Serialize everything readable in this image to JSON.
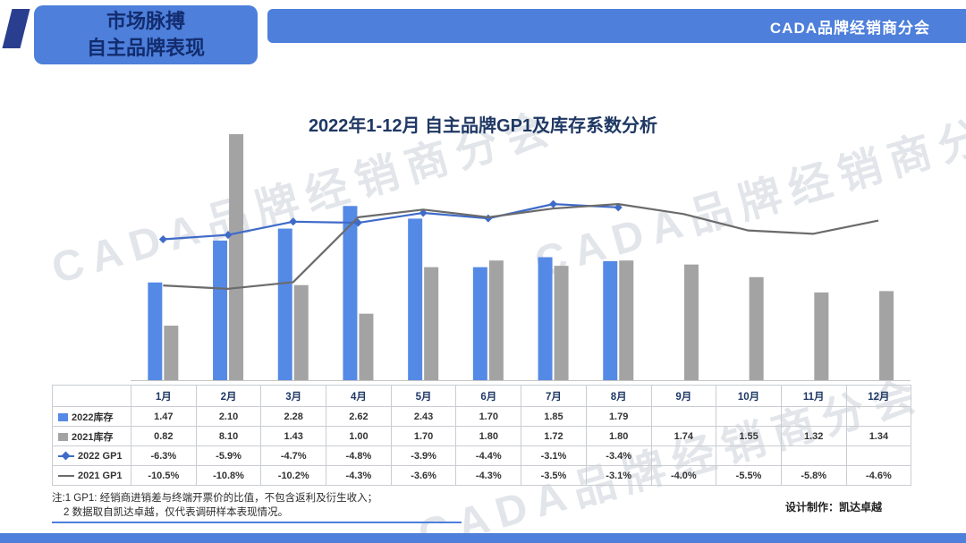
{
  "header": {
    "left_title_line1": "市场脉搏",
    "left_title_line2": "自主品牌表现",
    "right_title": "CADA品牌经销商分会"
  },
  "chart_title": "2022年1-12月 自主品牌GP1及库存系数分析",
  "watermark_text": "CADA品牌经销商分会",
  "chart_data": {
    "type": "bar+line combo",
    "title": "2022年1-12月 自主品牌GP1及库存系数分析",
    "categories": [
      "1月",
      "2月",
      "3月",
      "4月",
      "5月",
      "6月",
      "7月",
      "8月",
      "9月",
      "10月",
      "11月",
      "12月"
    ],
    "series": [
      {
        "name": "2022库存",
        "type": "bar",
        "color": "#5589E6",
        "marker": "none",
        "values": [
          1.47,
          2.1,
          2.28,
          2.62,
          2.43,
          1.7,
          1.85,
          1.79,
          null,
          null,
          null,
          null
        ]
      },
      {
        "name": "2021库存",
        "type": "bar",
        "color": "#A3A3A3",
        "marker": "none",
        "values": [
          0.82,
          8.1,
          1.43,
          1.0,
          1.7,
          1.8,
          1.72,
          1.8,
          1.74,
          1.55,
          1.32,
          1.34
        ]
      },
      {
        "name": "2022 GP1",
        "type": "line",
        "color": "#3F6BC8",
        "marker": "diamond",
        "unit": "%",
        "values": [
          -6.3,
          -5.9,
          -4.7,
          -4.8,
          -3.9,
          -4.4,
          -3.1,
          -3.4,
          null,
          null,
          null,
          null
        ]
      },
      {
        "name": "2021 GP1",
        "type": "line",
        "color": "#6B6B6B",
        "marker": "none",
        "unit": "%",
        "values": [
          -10.5,
          -10.8,
          -10.2,
          -4.3,
          -3.6,
          -4.3,
          -3.5,
          -3.1,
          -4.0,
          -5.5,
          -5.8,
          -4.6
        ]
      }
    ],
    "xlabel": "",
    "ylabel": "",
    "grid": false,
    "legend_position": "table-left",
    "layout_note": "no visible value axes; Feb 2021库存 bar (8.10) is clipped at the plot top"
  },
  "table": {
    "columns": [
      "1月",
      "2月",
      "3月",
      "4月",
      "5月",
      "6月",
      "7月",
      "8月",
      "9月",
      "10月",
      "11月",
      "12月"
    ],
    "rows": [
      {
        "label": "2022库存",
        "swatch": "bar",
        "color": "#5589E6",
        "cells": [
          "1.47",
          "2.10",
          "2.28",
          "2.62",
          "2.43",
          "1.70",
          "1.85",
          "1.79",
          "",
          "",
          "",
          ""
        ]
      },
      {
        "label": "2021库存",
        "swatch": "bar",
        "color": "#A3A3A3",
        "cells": [
          "0.82",
          "8.10",
          "1.43",
          "1.00",
          "1.70",
          "1.80",
          "1.72",
          "1.80",
          "1.74",
          "1.55",
          "1.32",
          "1.34"
        ]
      },
      {
        "label": "2022 GP1",
        "swatch": "line-diamond",
        "color": "#3F6BC8",
        "cells": [
          "-6.3%",
          "-5.9%",
          "-4.7%",
          "-4.8%",
          "-3.9%",
          "-4.4%",
          "-3.1%",
          "-3.4%",
          "",
          "",
          "",
          ""
        ]
      },
      {
        "label": "2021 GP1",
        "swatch": "line",
        "color": "#6B6B6B",
        "cells": [
          "-10.5%",
          "-10.8%",
          "-10.2%",
          "-4.3%",
          "-3.6%",
          "-4.3%",
          "-3.5%",
          "-3.1%",
          "-4.0%",
          "-5.5%",
          "-5.8%",
          "-4.6%"
        ]
      }
    ]
  },
  "footnotes": {
    "line1": "注:1 GP1: 经销商进销差与终端开票价的比值，不包含返利及衍生收入；",
    "line2": "2 数据取自凯达卓越，仅代表调研样本表现情况。"
  },
  "credit": "设计制作：凯达卓越",
  "colors": {
    "accent_blue": "#4D7FDB",
    "accent_dark_blue": "#2A3E8F",
    "navy_text": "#1F3864",
    "bar_blue": "#5589E6",
    "bar_gray": "#A3A3A3",
    "line_blue": "#3F6BC8",
    "line_gray": "#6B6B6B",
    "watermark_gray": "#CBD0D9"
  }
}
